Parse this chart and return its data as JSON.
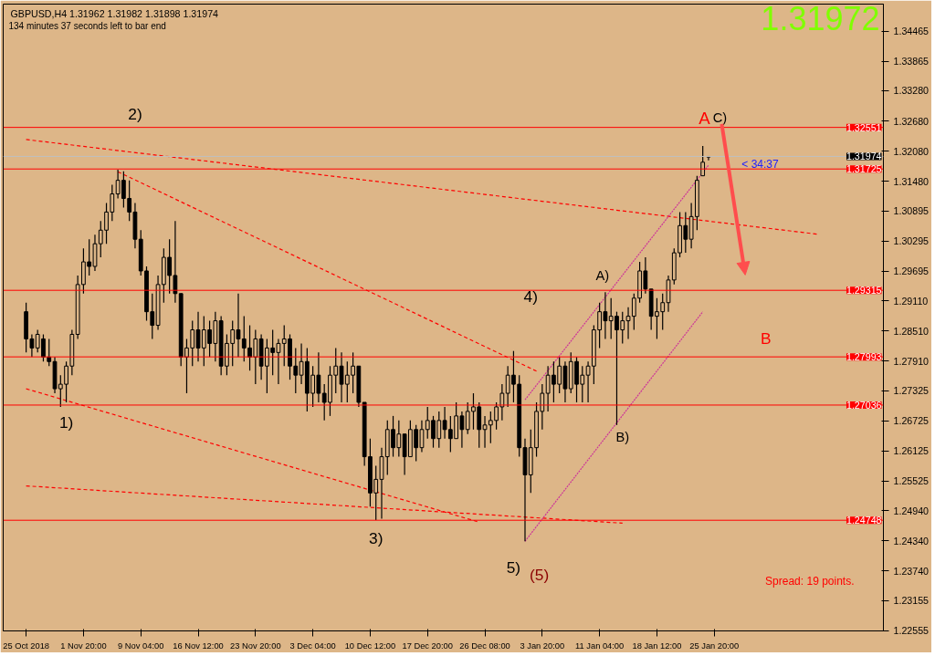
{
  "chart_data": {
    "type": "candlestick",
    "title": "GBPUSD,H4  1.31962 1.31982 1.31898 1.31974",
    "subtitle": "134 minutes 37 seconds left to bar end",
    "categories": [
      "25 Oct 2018",
      null,
      null,
      null,
      null,
      null,
      null,
      null,
      null,
      null,
      "1 Nov 20:00",
      null,
      null,
      null,
      null,
      null,
      null,
      null,
      null,
      null,
      "9 Nov 04:00",
      null,
      null,
      null,
      null,
      null,
      null,
      null,
      null,
      null,
      "16 Nov 12:00",
      null,
      null,
      null,
      null,
      null,
      null,
      null,
      null,
      null,
      "23 Nov 20:00",
      null,
      null,
      null,
      null,
      null,
      null,
      null,
      null,
      null,
      "3 Dec 04:00",
      null,
      null,
      null,
      null,
      null,
      null,
      null,
      null,
      null,
      "10 Dec 12:00",
      null,
      null,
      null,
      null,
      null,
      null,
      null,
      null,
      null,
      "17 Dec 20:00",
      null,
      null,
      null,
      null,
      null,
      null,
      null,
      null,
      null,
      "26 Dec 08:00",
      null,
      null,
      null,
      null,
      null,
      null,
      null,
      null,
      null,
      "3 Jan 20:00",
      null,
      null,
      null,
      null,
      null,
      null,
      null,
      null,
      null,
      "11 Jan 04:00",
      null,
      null,
      null,
      null,
      null,
      null,
      null,
      null,
      null,
      "18 Jan 12:00",
      null,
      null,
      null,
      null,
      null,
      null,
      null,
      null,
      null,
      "25 Jan 20:00",
      null,
      null,
      null,
      null,
      null,
      null,
      null,
      null,
      null,
      null,
      null,
      null,
      null,
      null,
      null,
      null,
      null,
      null,
      null,
      null,
      null,
      null,
      null,
      null,
      null,
      null,
      null,
      null,
      null
    ],
    "ohlc": [
      [
        1.2889,
        1.2907,
        1.2808,
        1.2835
      ],
      [
        1.2835,
        1.2844,
        1.2799,
        1.2817
      ],
      [
        1.2817,
        1.2853,
        1.2808,
        1.2844
      ],
      [
        1.2835,
        1.2844,
        1.279,
        1.2799
      ],
      [
        1.2799,
        1.2835,
        1.2781,
        1.279
      ],
      [
        1.279,
        1.2799,
        1.2727,
        1.2736
      ],
      [
        1.2736,
        1.2763,
        1.27,
        1.2745
      ],
      [
        1.2745,
        1.279,
        1.2709,
        1.2781
      ],
      [
        1.2781,
        1.2853,
        1.2763,
        1.2844
      ],
      [
        1.2844,
        1.2961,
        1.2835,
        1.2943
      ],
      [
        1.2943,
        1.3015,
        1.2925,
        1.2988
      ],
      [
        1.2988,
        1.3033,
        1.2961,
        1.2979
      ],
      [
        1.2979,
        1.3042,
        1.297,
        1.3024
      ],
      [
        1.3024,
        1.3069,
        1.2997,
        1.3051
      ],
      [
        1.3051,
        1.3105,
        1.3024,
        1.3087
      ],
      [
        1.3087,
        1.3141,
        1.3069,
        1.3123
      ],
      [
        1.3123,
        1.3171,
        1.3114,
        1.315
      ],
      [
        1.315,
        1.3168,
        1.3096,
        1.3114
      ],
      [
        1.3114,
        1.315,
        1.3069,
        1.3087
      ],
      [
        1.3087,
        1.3105,
        1.3015,
        1.3033
      ],
      [
        1.3033,
        1.3051,
        1.2961,
        1.297
      ],
      [
        1.297,
        1.2979,
        1.2871,
        1.2889
      ],
      [
        1.2889,
        1.2925,
        1.2835,
        1.2862
      ],
      [
        1.2862,
        1.2961,
        1.2853,
        1.2943
      ],
      [
        1.2943,
        1.3015,
        1.2907,
        1.2997
      ],
      [
        1.2997,
        1.3033,
        1.2925,
        1.2961
      ],
      [
        1.2961,
        1.3069,
        1.2907,
        1.2925
      ],
      [
        1.2925,
        1.2925,
        1.2781,
        1.2799
      ],
      [
        1.2799,
        1.2835,
        1.2727,
        1.2817
      ],
      [
        1.2817,
        1.2871,
        1.2781,
        1.2853
      ],
      [
        1.2853,
        1.2889,
        1.279,
        1.2817
      ],
      [
        1.2817,
        1.288,
        1.2781,
        1.2853
      ],
      [
        1.2853,
        1.2871,
        1.2799,
        1.2826
      ],
      [
        1.2826,
        1.2889,
        1.279,
        1.2871
      ],
      [
        1.2871,
        1.288,
        1.2763,
        1.2781
      ],
      [
        1.2781,
        1.2844,
        1.2763,
        1.2826
      ],
      [
        1.2826,
        1.2871,
        1.2781,
        1.2853
      ],
      [
        1.2853,
        1.2925,
        1.2799,
        1.2835
      ],
      [
        1.2835,
        1.288,
        1.279,
        1.2817
      ],
      [
        1.2817,
        1.2862,
        1.2772,
        1.2799
      ],
      [
        1.2799,
        1.2853,
        1.2745,
        1.2835
      ],
      [
        1.2835,
        1.2844,
        1.2754,
        1.2781
      ],
      [
        1.2781,
        1.2835,
        1.2727,
        1.2817
      ],
      [
        1.2817,
        1.2853,
        1.2763,
        1.2808
      ],
      [
        1.2808,
        1.2835,
        1.2745,
        1.2826
      ],
      [
        1.2826,
        1.2862,
        1.2781,
        1.2835
      ],
      [
        1.2835,
        1.2844,
        1.2754,
        1.2781
      ],
      [
        1.2781,
        1.2817,
        1.2727,
        1.2763
      ],
      [
        1.2763,
        1.2826,
        1.2745,
        1.279
      ],
      [
        1.279,
        1.2817,
        1.2691,
        1.2727
      ],
      [
        1.2727,
        1.2781,
        1.27,
        1.2763
      ],
      [
        1.2763,
        1.2808,
        1.2709,
        1.2727
      ],
      [
        1.2727,
        1.2745,
        1.2673,
        1.2709
      ],
      [
        1.2709,
        1.2781,
        1.2682,
        1.2763
      ],
      [
        1.2763,
        1.2817,
        1.2727,
        1.2781
      ],
      [
        1.2781,
        1.2808,
        1.2709,
        1.2745
      ],
      [
        1.2745,
        1.279,
        1.2709,
        1.2763
      ],
      [
        1.2763,
        1.2808,
        1.2727,
        1.2781
      ],
      [
        1.2781,
        1.2781,
        1.27,
        1.2709
      ],
      [
        1.2709,
        1.2709,
        1.2583,
        1.2601
      ],
      [
        1.2601,
        1.2637,
        1.2502,
        1.2529
      ],
      [
        1.2529,
        1.2583,
        1.2475,
        1.2556
      ],
      [
        1.2556,
        1.2619,
        1.2478,
        1.2601
      ],
      [
        1.2601,
        1.2673,
        1.2565,
        1.2655
      ],
      [
        1.2655,
        1.2682,
        1.2601,
        1.2619
      ],
      [
        1.2619,
        1.2673,
        1.2601,
        1.2646
      ],
      [
        1.2646,
        1.2646,
        1.2565,
        1.2601
      ],
      [
        1.2601,
        1.2673,
        1.2601,
        1.2655
      ],
      [
        1.2655,
        1.2664,
        1.2592,
        1.2619
      ],
      [
        1.2619,
        1.2673,
        1.261,
        1.2655
      ],
      [
        1.2655,
        1.27,
        1.2637,
        1.2673
      ],
      [
        1.2673,
        1.2682,
        1.2619,
        1.2637
      ],
      [
        1.2637,
        1.2691,
        1.2619,
        1.2673
      ],
      [
        1.2673,
        1.27,
        1.2637,
        1.2655
      ],
      [
        1.2655,
        1.2682,
        1.261,
        1.2637
      ],
      [
        1.2637,
        1.2709,
        1.2637,
        1.2682
      ],
      [
        1.2682,
        1.2691,
        1.2619,
        1.2655
      ],
      [
        1.2655,
        1.2709,
        1.2646,
        1.2691
      ],
      [
        1.2691,
        1.2727,
        1.2655,
        1.27
      ],
      [
        1.27,
        1.2709,
        1.2619,
        1.2655
      ],
      [
        1.2655,
        1.2682,
        1.2619,
        1.2664
      ],
      [
        1.2664,
        1.2691,
        1.2628,
        1.2673
      ],
      [
        1.2673,
        1.2709,
        1.2655,
        1.27
      ],
      [
        1.27,
        1.2745,
        1.2673,
        1.2727
      ],
      [
        1.2727,
        1.2781,
        1.27,
        1.2763
      ],
      [
        1.2763,
        1.2811,
        1.2709,
        1.2745
      ],
      [
        1.2745,
        1.2763,
        1.2601,
        1.2619
      ],
      [
        1.2619,
        1.2637,
        1.2433,
        1.2565
      ],
      [
        1.2565,
        1.2655,
        1.2529,
        1.2619
      ],
      [
        1.2619,
        1.2709,
        1.2601,
        1.2691
      ],
      [
        1.2691,
        1.2745,
        1.2655,
        1.2727
      ],
      [
        1.2727,
        1.2781,
        1.2691,
        1.2763
      ],
      [
        1.2763,
        1.279,
        1.2709,
        1.2745
      ],
      [
        1.2745,
        1.2799,
        1.2727,
        1.2781
      ],
      [
        1.2781,
        1.279,
        1.2709,
        1.2736
      ],
      [
        1.2736,
        1.2808,
        1.2727,
        1.279
      ],
      [
        1.279,
        1.2799,
        1.2709,
        1.2745
      ],
      [
        1.2745,
        1.2781,
        1.2709,
        1.2763
      ],
      [
        1.2763,
        1.279,
        1.2709,
        1.2781
      ],
      [
        1.2781,
        1.2862,
        1.2745,
        1.2853
      ],
      [
        1.2853,
        1.2907,
        1.2817,
        1.2889
      ],
      [
        1.2889,
        1.2928,
        1.2835,
        1.2871
      ],
      [
        1.2871,
        1.2916,
        1.2835,
        1.288
      ],
      [
        1.288,
        1.2889,
        1.2664,
        1.2853
      ],
      [
        1.2853,
        1.2889,
        1.2826,
        1.2871
      ],
      [
        1.2871,
        1.2898,
        1.2835,
        1.288
      ],
      [
        1.288,
        1.2925,
        1.2853,
        1.2916
      ],
      [
        1.2916,
        1.2988,
        1.2907,
        1.297
      ],
      [
        1.297,
        1.2997,
        1.2925,
        1.2934
      ],
      [
        1.2934,
        1.2934,
        1.2853,
        1.288
      ],
      [
        1.288,
        1.2916,
        1.2835,
        1.2889
      ],
      [
        1.2889,
        1.2925,
        1.2853,
        1.2907
      ],
      [
        1.2907,
        1.2961,
        1.2889,
        1.2952
      ],
      [
        1.2952,
        1.3015,
        1.2943,
        1.3006
      ],
      [
        1.3006,
        1.3087,
        1.2997,
        1.306
      ],
      [
        1.306,
        1.3087,
        1.3006,
        1.3033
      ],
      [
        1.3033,
        1.3105,
        1.3015,
        1.3078
      ],
      [
        1.3078,
        1.3159,
        1.3051,
        1.315
      ],
      [
        1.3159,
        1.3218,
        1.3159,
        1.3186
      ],
      [
        1.31962,
        1.31982,
        1.31898,
        1.31974
      ],
      null,
      null,
      null,
      null,
      null,
      null,
      null,
      null,
      null,
      null,
      null,
      null,
      null,
      null,
      null,
      null,
      null,
      null,
      null,
      null,
      null,
      null,
      null,
      null,
      null,
      null,
      null,
      null,
      null,
      null
    ],
    "color": "#000000",
    "series": [
      {
        "type": "line",
        "color": "#ff0000",
        "line_style": "dashed",
        "values": [
          1.3231,
          null,
          null,
          null,
          null,
          null,
          null,
          null,
          null,
          null,
          null,
          null,
          null,
          null,
          null,
          null,
          null,
          null,
          null,
          null,
          null,
          null,
          null,
          null,
          null,
          null,
          null,
          null,
          null,
          null,
          null,
          null,
          null,
          null,
          null,
          null,
          null,
          null,
          null,
          null,
          null,
          null,
          null,
          null,
          null,
          null,
          null,
          null,
          null,
          null,
          null,
          null,
          null,
          null,
          null,
          null,
          null,
          null,
          null,
          null,
          null,
          null,
          null,
          null,
          null,
          null,
          null,
          null,
          null,
          null,
          null,
          null,
          null,
          null,
          null,
          null,
          null,
          null,
          null,
          null,
          null,
          null,
          null,
          null,
          null,
          null,
          null,
          null,
          null,
          null,
          null,
          null,
          null,
          null,
          null,
          null,
          null,
          null,
          null,
          null,
          null,
          null,
          null,
          null,
          null,
          null,
          null,
          null,
          null,
          null,
          null,
          null,
          null,
          null,
          null,
          null,
          null,
          null,
          null,
          null,
          null,
          null,
          null,
          null,
          null,
          null,
          null,
          null,
          null,
          null,
          null,
          null,
          null,
          null,
          null,
          null,
          null,
          null,
          1.3043,
          null,
          null,
          null,
          null,
          null,
          null,
          null,
          null,
          null,
          null,
          null
        ]
      },
      {
        "type": "line",
        "color": "#ff0000",
        "line_style": "dashed",
        "values": [
          null,
          null,
          null,
          null,
          null,
          null,
          null,
          null,
          null,
          null,
          null,
          null,
          null,
          null,
          null,
          null,
          1.3167,
          null,
          null,
          null,
          null,
          null,
          null,
          null,
          null,
          null,
          null,
          null,
          null,
          null,
          null,
          null,
          null,
          null,
          null,
          null,
          null,
          null,
          null,
          null,
          null,
          null,
          null,
          null,
          null,
          null,
          null,
          null,
          null,
          null,
          null,
          null,
          null,
          null,
          null,
          null,
          null,
          null,
          null,
          null,
          null,
          null,
          null,
          null,
          null,
          null,
          null,
          null,
          null,
          null,
          null,
          null,
          null,
          null,
          null,
          null,
          null,
          null,
          null,
          null,
          null,
          null,
          null,
          null,
          null,
          null,
          null,
          null,
          null,
          1.2771,
          null,
          null,
          null,
          null,
          null,
          null,
          null,
          null,
          null,
          null,
          null,
          null,
          null,
          null,
          null,
          null,
          null,
          null,
          null,
          null,
          null,
          null,
          null,
          null,
          null,
          null,
          null,
          null,
          null,
          null,
          null,
          null,
          null,
          null,
          null,
          null,
          null,
          null,
          null,
          null,
          null,
          null,
          null,
          null,
          null,
          null,
          null,
          null,
          null,
          null,
          null,
          null,
          null,
          null,
          null,
          null,
          null,
          null,
          null,
          null
        ]
      },
      {
        "type": "line",
        "color": "#ff0000",
        "line_style": "dashed",
        "values": [
          1.2736,
          null,
          null,
          null,
          null,
          null,
          null,
          null,
          null,
          null,
          null,
          null,
          null,
          null,
          null,
          null,
          null,
          null,
          null,
          null,
          null,
          null,
          null,
          null,
          null,
          null,
          null,
          null,
          null,
          null,
          null,
          null,
          null,
          null,
          null,
          null,
          null,
          null,
          null,
          null,
          null,
          null,
          null,
          null,
          null,
          null,
          null,
          null,
          null,
          null,
          null,
          null,
          null,
          null,
          null,
          null,
          null,
          null,
          null,
          null,
          null,
          null,
          null,
          null,
          null,
          null,
          null,
          null,
          null,
          null,
          null,
          null,
          null,
          null,
          null,
          null,
          null,
          null,
          null,
          1.2471,
          null,
          null,
          null,
          null,
          null,
          null,
          null,
          null,
          null,
          null,
          null,
          null,
          null,
          null,
          null,
          null,
          null,
          null,
          null,
          null,
          null,
          null,
          null,
          null,
          null,
          null,
          null,
          null,
          null,
          null,
          null,
          null,
          null,
          null,
          null,
          null,
          null,
          null,
          null,
          null,
          null,
          null,
          null,
          null,
          null,
          null,
          null,
          null,
          null,
          null,
          null,
          null,
          null,
          null,
          null,
          null,
          null,
          null,
          null,
          null,
          null,
          null,
          null,
          null,
          null,
          null,
          null,
          null,
          null,
          null
        ]
      },
      {
        "type": "line",
        "color": "#ff0000",
        "line_style": "dashed",
        "values": [
          1.2543,
          null,
          null,
          null,
          null,
          null,
          null,
          null,
          null,
          null,
          null,
          null,
          null,
          null,
          null,
          null,
          null,
          null,
          null,
          null,
          null,
          null,
          null,
          null,
          null,
          null,
          null,
          null,
          null,
          null,
          null,
          null,
          null,
          null,
          null,
          null,
          null,
          null,
          null,
          null,
          null,
          null,
          null,
          null,
          null,
          null,
          null,
          null,
          null,
          null,
          null,
          null,
          null,
          null,
          null,
          null,
          null,
          null,
          null,
          null,
          null,
          null,
          null,
          null,
          null,
          null,
          null,
          null,
          null,
          null,
          null,
          null,
          null,
          null,
          null,
          null,
          null,
          null,
          null,
          null,
          null,
          null,
          null,
          null,
          null,
          null,
          null,
          null,
          null,
          null,
          null,
          null,
          null,
          null,
          null,
          null,
          null,
          null,
          null,
          null,
          null,
          null,
          null,
          null,
          1.2469,
          null,
          null,
          null,
          null,
          null,
          null,
          null,
          null,
          null,
          null,
          null,
          null,
          null,
          null,
          null,
          null,
          null,
          null,
          null,
          null,
          null,
          null,
          null,
          null,
          null,
          null,
          null,
          null,
          null,
          null,
          null,
          null,
          null,
          null,
          null,
          null,
          null,
          null,
          null,
          null,
          null,
          null,
          null,
          null,
          null
        ]
      },
      {
        "type": "line",
        "color": "#cc3399",
        "line_style": "dotted",
        "values": [
          null,
          null,
          null,
          null,
          null,
          null,
          null,
          null,
          null,
          null,
          null,
          null,
          null,
          null,
          null,
          null,
          null,
          null,
          null,
          null,
          null,
          null,
          null,
          null,
          null,
          null,
          null,
          null,
          null,
          null,
          null,
          null,
          null,
          null,
          null,
          null,
          null,
          null,
          null,
          null,
          null,
          null,
          null,
          null,
          null,
          null,
          null,
          null,
          null,
          null,
          null,
          null,
          null,
          null,
          null,
          null,
          null,
          null,
          null,
          null,
          null,
          null,
          null,
          null,
          null,
          null,
          null,
          null,
          null,
          null,
          null,
          null,
          null,
          null,
          null,
          null,
          null,
          null,
          null,
          null,
          null,
          null,
          null,
          null,
          null,
          null,
          null,
          1.2714,
          null,
          null,
          null,
          null,
          null,
          null,
          null,
          null,
          null,
          null,
          null,
          null,
          null,
          null,
          null,
          null,
          null,
          null,
          null,
          null,
          null,
          null,
          null,
          null,
          null,
          null,
          null,
          null,
          null,
          null,
          null,
          1.318,
          null,
          null,
          null,
          null,
          null,
          null,
          null,
          null,
          null,
          null,
          null,
          null,
          null,
          null,
          null,
          null,
          null,
          null,
          null,
          null,
          null,
          null,
          null,
          null,
          null,
          null,
          null,
          null,
          null,
          null
        ]
      },
      {
        "type": "line",
        "color": "#cc3399",
        "line_style": "dotted",
        "values": [
          null,
          null,
          null,
          null,
          null,
          null,
          null,
          null,
          null,
          null,
          null,
          null,
          null,
          null,
          null,
          null,
          null,
          null,
          null,
          null,
          null,
          null,
          null,
          null,
          null,
          null,
          null,
          null,
          null,
          null,
          null,
          null,
          null,
          null,
          null,
          null,
          null,
          null,
          null,
          null,
          null,
          null,
          null,
          null,
          null,
          null,
          null,
          null,
          null,
          null,
          null,
          null,
          null,
          null,
          null,
          null,
          null,
          null,
          null,
          null,
          null,
          null,
          null,
          null,
          null,
          null,
          null,
          null,
          null,
          null,
          null,
          null,
          null,
          null,
          null,
          null,
          null,
          null,
          null,
          null,
          null,
          null,
          null,
          null,
          null,
          null,
          null,
          1.2433,
          null,
          null,
          null,
          null,
          null,
          null,
          null,
          null,
          null,
          null,
          null,
          null,
          null,
          null,
          null,
          null,
          null,
          null,
          null,
          null,
          null,
          null,
          null,
          null,
          null,
          null,
          null,
          null,
          null,
          null,
          1.2889,
          null,
          null,
          null,
          null,
          null,
          null,
          null,
          null,
          null,
          null,
          null,
          null,
          null,
          null,
          null,
          null,
          null,
          null,
          null,
          null,
          null,
          null,
          null,
          null,
          null,
          null,
          null,
          null,
          null,
          null,
          null
        ]
      }
    ],
    "ylim": [
      1.2255,
      1.35
    ],
    "yticks": [
      {
        "value": 1.22555,
        "label": "1.22555"
      },
      {
        "value": 1.23155,
        "label": "1.23155"
      },
      {
        "value": 1.2374,
        "label": "1.23740"
      },
      {
        "value": 1.2434,
        "label": "1.24340"
      },
      {
        "value": 1.2494,
        "label": "1.24940"
      },
      {
        "value": 1.25525,
        "label": "1.25525"
      },
      {
        "value": 1.26125,
        "label": "1.26125"
      },
      {
        "value": 1.26725,
        "label": "1.26725"
      },
      {
        "value": 1.27325,
        "label": "1.27325"
      },
      {
        "value": 1.2791,
        "label": "1.27910"
      },
      {
        "value": 1.2851,
        "label": "1.28510"
      },
      {
        "value": 1.2911,
        "label": "1.29110"
      },
      {
        "value": 1.29695,
        "label": "1.29695"
      },
      {
        "value": 1.30295,
        "label": "1.30295"
      },
      {
        "value": 1.30895,
        "label": "1.30895"
      },
      {
        "value": 1.3148,
        "label": "1.31480"
      },
      {
        "value": 1.3208,
        "label": "1.32080"
      },
      {
        "value": 1.3268,
        "label": "1.32680"
      },
      {
        "value": 1.3328,
        "label": "1.33280"
      },
      {
        "value": 1.33865,
        "label": "1.33865"
      },
      {
        "value": 1.34465,
        "label": "1.34465"
      }
    ],
    "ref_lines": [
      {
        "axis": "y",
        "value": 1.32551,
        "label": "1.32551",
        "color": "#ff0000"
      },
      {
        "axis": "y",
        "value": 1.31974,
        "label": "1.31974",
        "color": "#c0c0c0"
      },
      {
        "axis": "y",
        "value": 1.31725,
        "label": "1.31725",
        "color": "#ff0000"
      },
      {
        "axis": "y",
        "value": 1.29315,
        "label": "1.29315",
        "color": "#ff0000"
      },
      {
        "axis": "y",
        "value": 1.27993,
        "label": "1.27993",
        "color": "#ff0000"
      },
      {
        "axis": "y",
        "value": 1.27036,
        "label": "1.27036",
        "color": "#ff0000"
      },
      {
        "axis": "y",
        "value": 1.24748,
        "label": "1.24748",
        "color": "#ff0000"
      }
    ],
    "annotations": [
      "1)",
      "2)",
      "3)",
      "4)",
      "5)",
      "(5)",
      "A)",
      "B)",
      "A",
      "C)",
      "B",
      "< 34:37",
      "1.31972",
      "Spread: 19 points."
    ],
    "grid": false
  }
}
